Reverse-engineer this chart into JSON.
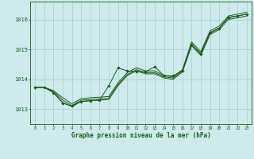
{
  "bg_color": "#ceeaed",
  "grid_color": "#a8cdd1",
  "line_color": "#1a5c1a",
  "xlabel": "Graphe pression niveau de la mer (hPa)",
  "ylim": [
    1012.5,
    1016.6
  ],
  "xlim": [
    -0.5,
    23.5
  ],
  "yticks": [
    1013,
    1014,
    1015,
    1016
  ],
  "xticks": [
    0,
    1,
    2,
    3,
    4,
    5,
    6,
    7,
    8,
    9,
    10,
    11,
    12,
    13,
    14,
    15,
    16,
    17,
    18,
    19,
    20,
    21,
    22,
    23
  ],
  "smooth_line1": [
    1013.73,
    1013.73,
    1013.62,
    1013.38,
    1013.18,
    1013.35,
    1013.38,
    1013.4,
    1013.42,
    1013.88,
    1014.22,
    1014.38,
    1014.28,
    1014.28,
    1014.12,
    1014.08,
    1014.32,
    1015.25,
    1014.92,
    1015.62,
    1015.78,
    1016.12,
    1016.18,
    1016.25
  ],
  "smooth_line2": [
    1013.73,
    1013.73,
    1013.58,
    1013.3,
    1013.12,
    1013.3,
    1013.32,
    1013.34,
    1013.36,
    1013.82,
    1014.16,
    1014.32,
    1014.22,
    1014.22,
    1014.08,
    1014.04,
    1014.28,
    1015.18,
    1014.86,
    1015.56,
    1015.72,
    1016.06,
    1016.12,
    1016.18
  ],
  "smooth_line3": [
    1013.73,
    1013.73,
    1013.55,
    1013.22,
    1013.08,
    1013.26,
    1013.28,
    1013.3,
    1013.32,
    1013.78,
    1014.12,
    1014.28,
    1014.18,
    1014.18,
    1014.04,
    1014.0,
    1014.24,
    1015.12,
    1014.8,
    1015.5,
    1015.66,
    1016.0,
    1016.06,
    1016.12
  ],
  "marker_line": [
    1013.73,
    1013.73,
    1013.55,
    1013.2,
    1013.1,
    1013.25,
    1013.28,
    1013.3,
    1013.78,
    1014.38,
    1014.28,
    1014.25,
    1014.25,
    1014.42,
    1014.12,
    1014.12,
    1014.28,
    1015.17,
    1014.85,
    1015.55,
    1015.7,
    1016.08,
    1016.12,
    1016.18
  ]
}
